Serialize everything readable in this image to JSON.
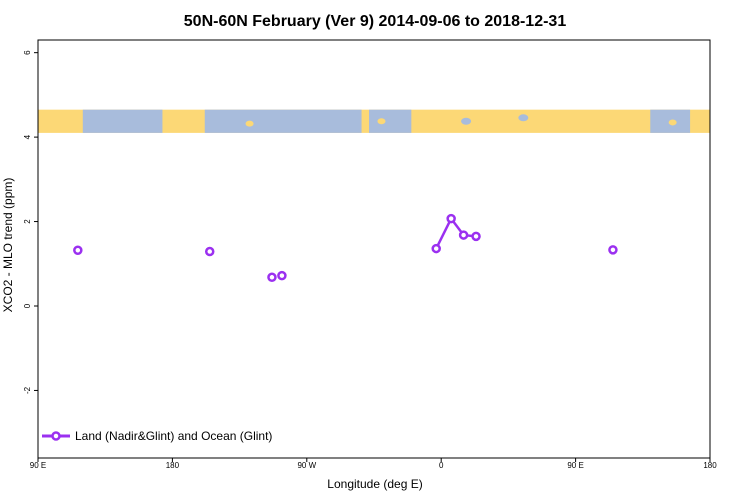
{
  "chart_data": {
    "type": "line",
    "title": "50N-60N February (Ver 9)   2014-09-06 to 2018-12-31",
    "xlabel": "Longitude (deg E)",
    "ylabel": "XCO2 - MLO trend (ppm)",
    "xlim": [
      90,
      360
    ],
    "ylim": [
      -3.6,
      6.3
    ],
    "x_ticks": [
      {
        "value": 90,
        "label": "90 E"
      },
      {
        "value": 144,
        "label": "180"
      },
      {
        "value": 198,
        "label": "90 W"
      },
      {
        "value": 252,
        "label": "0"
      },
      {
        "value": 306,
        "label": "90 E"
      },
      {
        "value": 360,
        "label": "180"
      }
    ],
    "y_ticks": [
      {
        "value": -2,
        "label": "-2"
      },
      {
        "value": 0,
        "label": "0"
      },
      {
        "value": 2,
        "label": "2"
      },
      {
        "value": 4,
        "label": "4"
      },
      {
        "value": 6,
        "label": "6"
      }
    ],
    "grid": false,
    "legend_position": "bottom-left",
    "map_strip": {
      "y_range": [
        4.1,
        4.65
      ],
      "land_color": "#fcd876",
      "ocean_color": "#a8bcdc"
    },
    "series": [
      {
        "name": "Land (Nadir&Glint) and Ocean (Glint)",
        "color": "#9b30f0",
        "points": [
          {
            "x": 106,
            "y": 1.32
          },
          {
            "x": 159,
            "y": 1.29
          },
          {
            "x": 184,
            "y": 0.68
          },
          {
            "x": 188,
            "y": 0.72
          },
          {
            "x": 250,
            "y": 1.36
          },
          {
            "x": 256,
            "y": 2.07
          },
          {
            "x": 261,
            "y": 1.68
          },
          {
            "x": 266,
            "y": 1.65
          },
          {
            "x": 321,
            "y": 1.33
          }
        ],
        "segments": [
          [
            4,
            5,
            6,
            7
          ]
        ]
      }
    ]
  }
}
